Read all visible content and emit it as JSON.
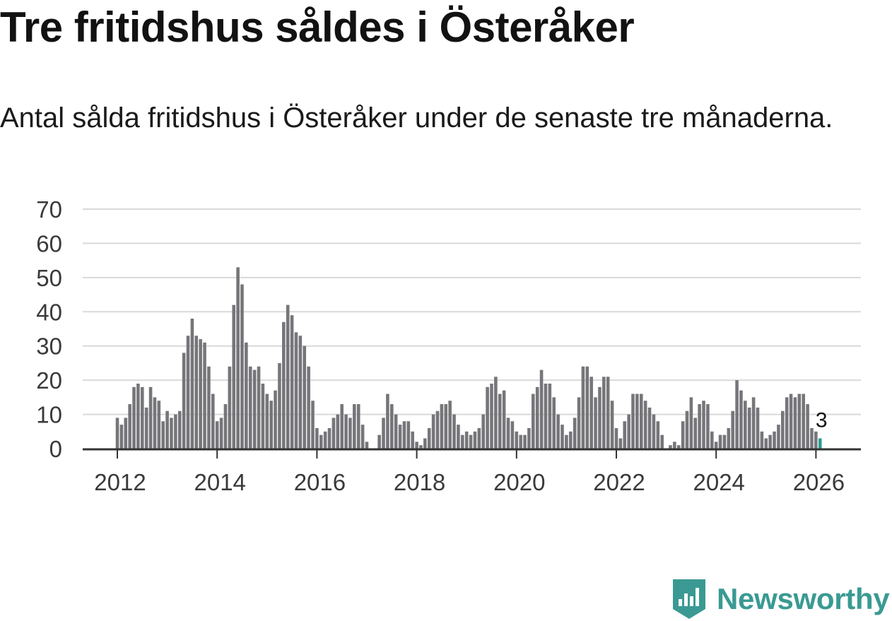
{
  "title": "Tre fritidshus såldes i Österåker",
  "subtitle": "Antal sålda fritidshus i Österåker under de senaste tre månaderna.",
  "brand": "Newsworthy",
  "colors": {
    "bar": "#76767a",
    "highlight": "#2a9d8f",
    "grid": "#d9d9d9",
    "axis": "#333333",
    "brand": "#3a9a93"
  },
  "chart_data": {
    "type": "bar",
    "title": "Tre fritidshus såldes i Österåker",
    "ylim": [
      0,
      70
    ],
    "yticks": [
      0,
      10,
      20,
      30,
      40,
      50,
      60,
      70
    ],
    "xticks": [
      {
        "label": "2012",
        "x": 2012
      },
      {
        "label": "2014",
        "x": 2014
      },
      {
        "label": "2016",
        "x": 2016
      },
      {
        "label": "2018",
        "x": 2018
      },
      {
        "label": "2020",
        "x": 2020
      },
      {
        "label": "2022",
        "x": 2022
      },
      {
        "label": "2024",
        "x": 2024
      },
      {
        "label": "2026",
        "x": 2026
      }
    ],
    "start": 2012.0,
    "step": 0.08333,
    "values": [
      9,
      7,
      9,
      13,
      18,
      19,
      18,
      12,
      18,
      15,
      14,
      8,
      11,
      9,
      10,
      11,
      28,
      33,
      38,
      33,
      32,
      31,
      24,
      16,
      8,
      9,
      13,
      24,
      42,
      53,
      48,
      31,
      24,
      23,
      24,
      19,
      16,
      14,
      17,
      25,
      37,
      42,
      39,
      34,
      33,
      30,
      24,
      14,
      6,
      4,
      5,
      6,
      9,
      10,
      13,
      10,
      9,
      13,
      13,
      7,
      2,
      0,
      0,
      4,
      9,
      16,
      13,
      10,
      7,
      8,
      8,
      5,
      2,
      1,
      3,
      6,
      10,
      11,
      13,
      13,
      14,
      10,
      7,
      4,
      5,
      4,
      5,
      6,
      10,
      18,
      19,
      21,
      16,
      17,
      9,
      8,
      5,
      4,
      4,
      6,
      16,
      18,
      23,
      19,
      19,
      15,
      10,
      7,
      4,
      5,
      9,
      15,
      24,
      24,
      21,
      15,
      18,
      21,
      21,
      14,
      6,
      3,
      8,
      10,
      16,
      16,
      16,
      14,
      12,
      10,
      8,
      4,
      0,
      1,
      2,
      1,
      8,
      11,
      15,
      9,
      13,
      14,
      13,
      5,
      2,
      4,
      4,
      6,
      11,
      20,
      17,
      14,
      12,
      15,
      12,
      5,
      3,
      4,
      5,
      7,
      11,
      15,
      16,
      15,
      16,
      16,
      13,
      6,
      5,
      3
    ],
    "highlight_last": true,
    "last_label": "3"
  }
}
